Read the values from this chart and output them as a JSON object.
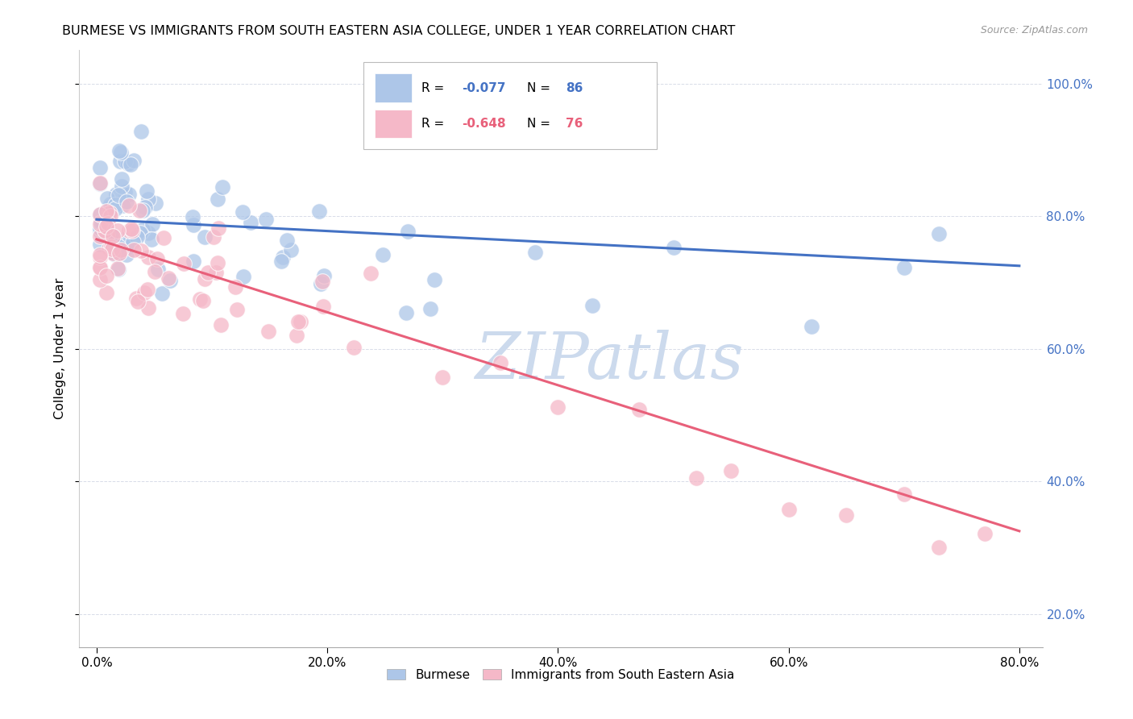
{
  "title": "BURMESE VS IMMIGRANTS FROM SOUTH EASTERN ASIA COLLEGE, UNDER 1 YEAR CORRELATION CHART",
  "source": "Source: ZipAtlas.com",
  "ylabel": "College, Under 1 year",
  "xlim": [
    -0.015,
    0.82
  ],
  "ylim": [
    0.15,
    1.05
  ],
  "xtick_vals": [
    0.0,
    0.2,
    0.4,
    0.6,
    0.8
  ],
  "xtick_labels": [
    "0.0%",
    "20.0%",
    "40.0%",
    "60.0%",
    "80.0%"
  ],
  "ytick_vals": [
    0.2,
    0.4,
    0.6,
    0.8,
    1.0
  ],
  "ytick_labels": [
    "20.0%",
    "40.0%",
    "60.0%",
    "80.0%",
    "100.0%"
  ],
  "blue_R": "-0.077",
  "blue_N": "86",
  "pink_R": "-0.648",
  "pink_N": "76",
  "blue_dot_color": "#adc6e8",
  "pink_dot_color": "#f5b8c8",
  "blue_line_color": "#4472c4",
  "pink_line_color": "#e8607a",
  "tick_label_color": "#4472c4",
  "watermark_color": "#ccdaed",
  "grid_color": "#d8dce8",
  "blue_trendline_x0": 0.0,
  "blue_trendline_y0": 0.795,
  "blue_trendline_x1": 0.8,
  "blue_trendline_y1": 0.725,
  "pink_trendline_x0": 0.0,
  "pink_trendline_y0": 0.765,
  "pink_trendline_x1": 0.8,
  "pink_trendline_y1": 0.325
}
